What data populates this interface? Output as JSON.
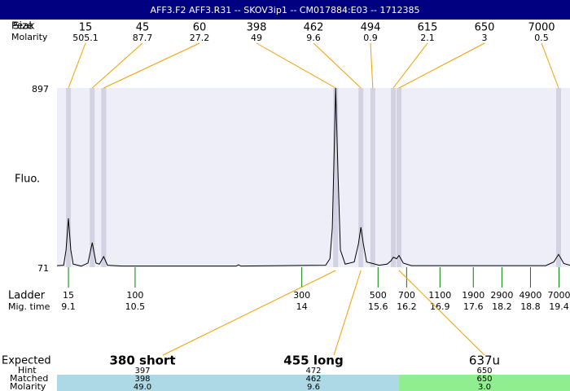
{
  "header": {
    "title": "AFF3.F2  AFF3.R31 -- SKOV3ip1 -- CM017884:E03 -- 1712385"
  },
  "row_labels": {
    "peak": "Peak",
    "size": "Size",
    "molarity": "Molarity",
    "ladder": "Ladder",
    "mig_time": "Mig. time",
    "expected": "Expected",
    "hint": "Hint",
    "matched": "Matched",
    "molarity2": "Molarity"
  },
  "chart_data": {
    "type": "line",
    "ylabel": "Fluo.",
    "color": "#000000",
    "xlim": [
      8.86,
      19.63
    ],
    "ylim": [
      71,
      897
    ],
    "yticks": [
      71,
      897
    ],
    "x": [
      8.86,
      9.0,
      9.05,
      9.1,
      9.15,
      9.2,
      9.37,
      9.51,
      9.6,
      9.68,
      9.75,
      9.84,
      9.92,
      10.23,
      12.62,
      12.67,
      12.72,
      14.5,
      14.59,
      14.64,
      14.69,
      14.71,
      14.76,
      14.81,
      14.91,
      15.1,
      15.19,
      15.24,
      15.29,
      15.36,
      15.49,
      15.62,
      15.79,
      15.87,
      15.92,
      15.99,
      16.04,
      16.13,
      16.3,
      19.12,
      19.29,
      19.39,
      19.5,
      19.63
    ],
    "values": [
      78,
      80,
      150,
      296,
      150,
      85,
      76,
      90,
      184,
      90,
      85,
      120,
      80,
      76,
      76,
      82,
      76,
      80,
      110,
      250,
      700,
      897,
      500,
      150,
      85,
      95,
      180,
      255,
      180,
      95,
      88,
      80,
      85,
      100,
      117,
      110,
      125,
      90,
      78,
      78,
      95,
      130,
      88,
      80
    ],
    "peaks": [
      {
        "size": 15,
        "molarity": 505.1,
        "time": 9.1
      },
      {
        "size": 45,
        "molarity": 87.7,
        "time": 9.6
      },
      {
        "size": 60,
        "molarity": 27.2,
        "time": 9.84
      },
      {
        "size": 398,
        "molarity": 49,
        "time": 14.71
      },
      {
        "size": 462,
        "molarity": 9.6,
        "time": 15.24
      },
      {
        "size": 494,
        "molarity": 0.9,
        "time": 15.49
      },
      {
        "size": 615,
        "molarity": 2.1,
        "time": 15.92
      },
      {
        "size": 650,
        "molarity": 3,
        "time": 16.04
      },
      {
        "size": 7000,
        "molarity": 0.5,
        "time": 19.39
      }
    ],
    "ladder": [
      {
        "size": 15,
        "time": 9.1
      },
      {
        "size": 100,
        "time": 10.5
      },
      {
        "size": 300,
        "time": 14
      },
      {
        "size": 500,
        "time": 15.6
      },
      {
        "size": 700,
        "time": 16.2
      },
      {
        "size": 1100,
        "time": 16.9
      },
      {
        "size": 1900,
        "time": 17.6
      },
      {
        "size": 2900,
        "time": 18.2
      },
      {
        "size": 4900,
        "time": 18.8
      },
      {
        "size": 7000,
        "time": 19.4
      }
    ]
  },
  "expected": [
    {
      "label": "380 short",
      "hint": "397",
      "matched": "398",
      "molarity": "49.0"
    },
    {
      "label": "455 long",
      "hint": "472",
      "matched": "462",
      "molarity": "9.6"
    },
    {
      "label": "637u",
      "hint": "650",
      "matched": "650",
      "molarity": "3.0"
    }
  ]
}
